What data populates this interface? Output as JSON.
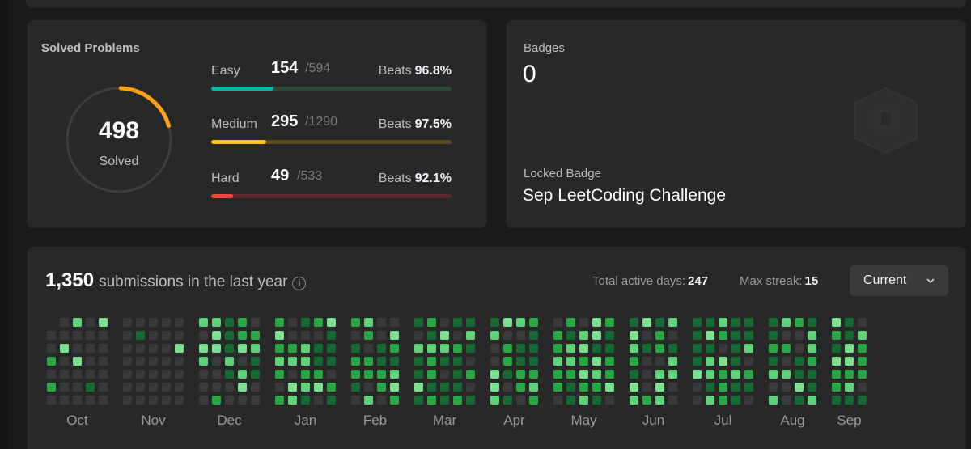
{
  "solved": {
    "title": "Solved Problems",
    "total": "498",
    "total_label": "Solved",
    "ring_fraction": 0.2,
    "ring_color": "#ffa116",
    "difficulties": [
      {
        "name": "Easy",
        "solved": "154",
        "total": "/594",
        "beats_label": "Beats",
        "beats": "96.8%",
        "fraction": 0.26,
        "color": "#00b8a3",
        "track": "#2a4a36"
      },
      {
        "name": "Medium",
        "solved": "295",
        "total": "/1290",
        "beats_label": "Beats",
        "beats": "97.5%",
        "fraction": 0.23,
        "color": "#ffc01e",
        "track": "#5a4a1e"
      },
      {
        "name": "Hard",
        "solved": "49",
        "total": "/533",
        "beats_label": "Beats",
        "beats": "92.1%",
        "fraction": 0.09,
        "color": "#ef4743",
        "track": "#5a2a2a"
      }
    ]
  },
  "badges": {
    "label": "Badges",
    "count": "0",
    "locked_label": "Locked Badge",
    "locked_name": "Sep LeetCoding Challenge",
    "badge_icon": "calendar-badge-icon"
  },
  "submissions": {
    "count": "1,350",
    "text": "submissions in the last year",
    "active_days_label": "Total active days:",
    "active_days": "247",
    "max_streak_label": "Max streak:",
    "max_streak": "15",
    "dropdown_value": "Current",
    "months": [
      "Oct",
      "Nov",
      "Dec",
      "Jan",
      "Feb",
      "Mar",
      "Apr",
      "May",
      "Jun",
      "Jul",
      "Aug",
      "Sep"
    ],
    "colors": {
      "empty": "#3a3a3a",
      "l1": "#166b34",
      "l2": "#28a745",
      "l3": "#5fd37a",
      "l4": "#7be08f"
    }
  }
}
